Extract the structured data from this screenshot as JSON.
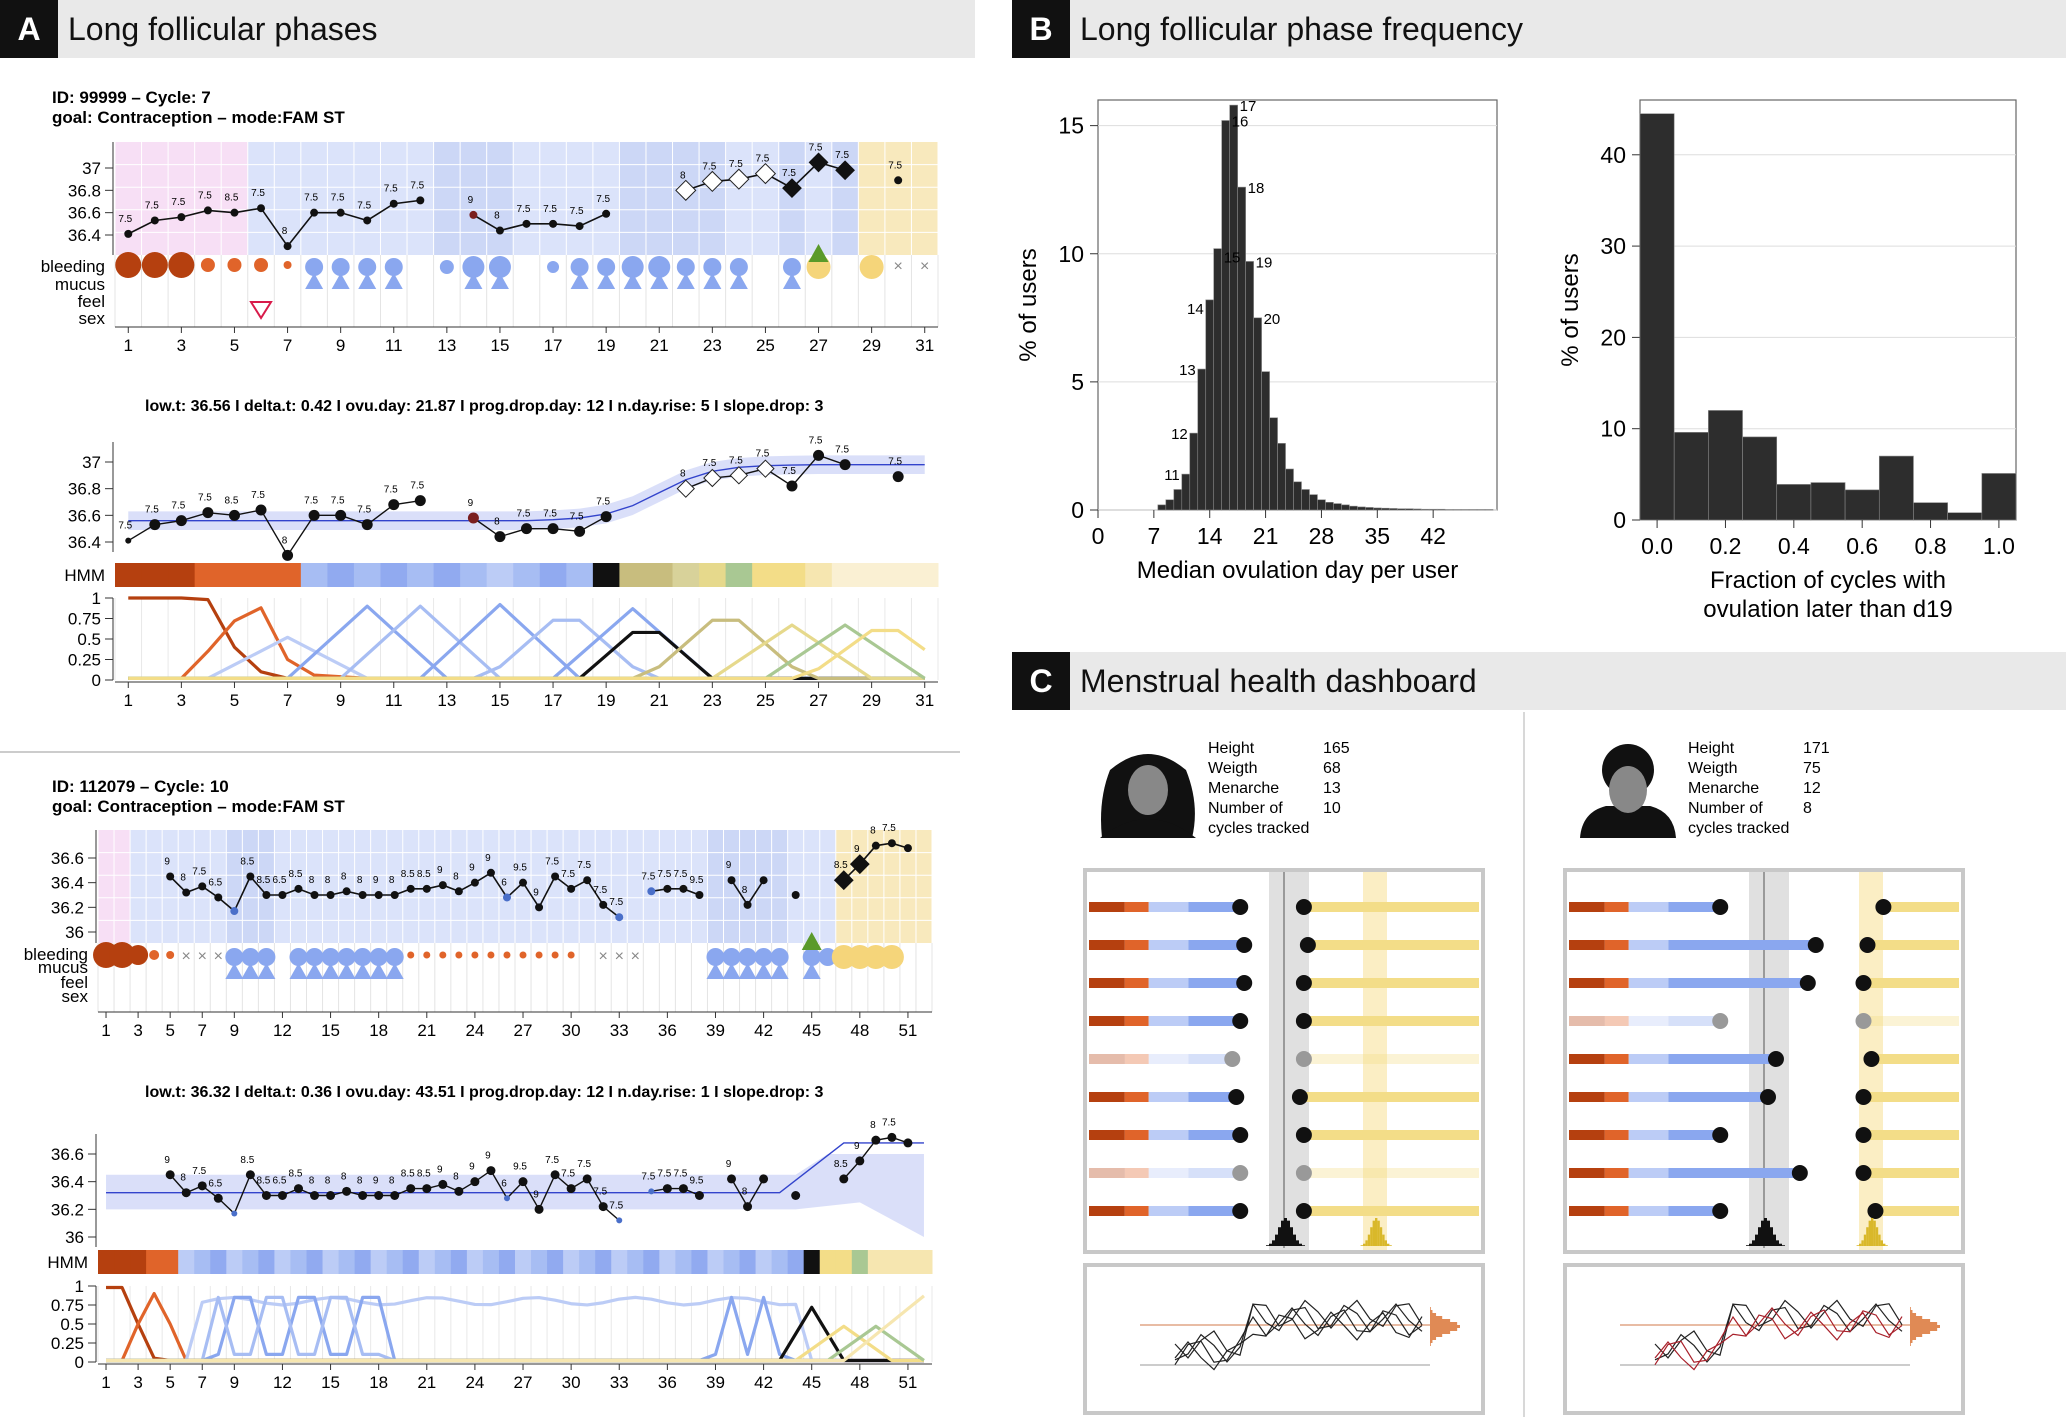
{
  "panels": {
    "a": {
      "letter": "A",
      "title": "Long follicular phases"
    },
    "b": {
      "letter": "B",
      "title": "Long follicular phase frequency"
    },
    "c": {
      "letter": "C",
      "title": "Menstrual health dashboard"
    }
  },
  "cycle1": {
    "id_line": "ID: 99999 – Cycle: 7",
    "goal_line": "goal: Contraception  –  mode:FAM ST",
    "stats": "low.t: 36.56  I  delta.t: 0.42  I  ovu.day: 21.87  I  prog.drop.day: 12  I  n.day.rise: 5  I  slope.drop: 3",
    "temp_ticks": [
      "37",
      "36.8",
      "36.6",
      "36.4"
    ],
    "days": [
      "1",
      "3",
      "5",
      "7",
      "9",
      "11",
      "13",
      "15",
      "17",
      "19",
      "21",
      "23",
      "25",
      "27",
      "29",
      "31"
    ]
  },
  "cycle2": {
    "id_line": "ID: 112079 – Cycle: 10",
    "goal_line": "goal: Contraception  –  mode:FAM ST",
    "stats": "low.t: 36.32  I  delta.t: 0.36  I  ovu.day: 43.51  I  prog.drop.day: 12  I  n.day.rise: 1  I  slope.drop: 3",
    "temp_ticks": [
      "36.6",
      "36.4",
      "36.2",
      "36"
    ],
    "days": [
      "1",
      "3",
      "5",
      "7",
      "9",
      "12",
      "15",
      "18",
      "21",
      "24",
      "27",
      "30",
      "33",
      "36",
      "39",
      "42",
      "45",
      "48",
      "51"
    ]
  },
  "row_labels": [
    "bleeding",
    "mucus",
    "feel",
    "sex"
  ],
  "hmm_label": "HMM",
  "prob_ticks": [
    "1",
    "0.75",
    "0.5",
    "0.25",
    "0"
  ],
  "chart_data": [
    {
      "type": "bar",
      "title": "Long follicular phase frequency",
      "xlabel": "Median ovulation day per user",
      "ylabel": "% of users",
      "xlim": [
        0,
        50
      ],
      "ylim": [
        0,
        16
      ],
      "xticks": [
        "0",
        "7",
        "14",
        "21",
        "28",
        "35",
        "42"
      ],
      "yticks": [
        "0",
        "5",
        "10",
        "15"
      ],
      "bin_width": 1,
      "x": [
        8,
        9,
        10,
        11,
        12,
        13,
        14,
        15,
        16,
        17,
        18,
        19,
        20,
        21,
        22,
        23,
        24,
        25,
        26,
        27,
        28,
        29,
        30,
        31,
        32,
        33,
        34,
        35,
        36,
        37,
        38,
        39,
        40,
        41,
        42,
        43,
        44,
        45,
        46,
        47,
        48,
        49
      ],
      "values": [
        0.2,
        0.4,
        0.8,
        1.4,
        3,
        5.5,
        8.2,
        10.2,
        15.2,
        15.8,
        12.6,
        9.7,
        7.5,
        5.4,
        3.6,
        2.6,
        1.6,
        1.1,
        0.8,
        0.6,
        0.4,
        0.3,
        0.25,
        0.2,
        0.15,
        0.12,
        0.1,
        0.08,
        0.07,
        0.06,
        0.05,
        0.05,
        0.04,
        0.03,
        0.03,
        0.03,
        0.02,
        0.02,
        0.02,
        0.02,
        0.02,
        0.02
      ],
      "bar_labels": [
        {
          "x": 11,
          "label": "11"
        },
        {
          "x": 12,
          "label": "12"
        },
        {
          "x": 13,
          "label": "13"
        },
        {
          "x": 14,
          "label": "14"
        },
        {
          "x": 15,
          "label": "15"
        },
        {
          "x": 16,
          "label": "16"
        },
        {
          "x": 17,
          "label": "17"
        },
        {
          "x": 18,
          "label": "18"
        },
        {
          "x": 19,
          "label": "19"
        },
        {
          "x": 20,
          "label": "20"
        }
      ]
    },
    {
      "type": "bar",
      "xlabel": "Fraction of cycles with ovulation later than d19",
      "xlabel_lines": [
        "Fraction of cycles with",
        "ovulation later than d19"
      ],
      "ylabel": "% of users",
      "xlim": [
        -0.05,
        1.05
      ],
      "ylim": [
        0,
        46
      ],
      "xticks": [
        "0.0",
        "0.2",
        "0.4",
        "0.6",
        "0.8",
        "1.0"
      ],
      "yticks": [
        "0",
        "10",
        "20",
        "30",
        "40"
      ],
      "bin_width": 0.1,
      "x": [
        0.0,
        0.1,
        0.2,
        0.3,
        0.4,
        0.5,
        0.6,
        0.7,
        0.8,
        0.9,
        1.0
      ],
      "values": [
        44.5,
        9.6,
        12.0,
        9.1,
        3.9,
        4.1,
        3.3,
        7.0,
        1.9,
        0.8,
        5.1
      ]
    }
  ],
  "dashboard": {
    "users": [
      {
        "labels": [
          "Height",
          "Weigth",
          "Menarche",
          "Number of",
          "cycles tracked"
        ],
        "values": [
          "165",
          "68",
          "13",
          "10",
          ""
        ]
      },
      {
        "labels": [
          "Height",
          "Weigth",
          "Menarche",
          "Number of",
          "cycles tracked"
        ],
        "values": [
          "171",
          "75",
          "12",
          "8",
          ""
        ]
      }
    ]
  },
  "colors": {
    "bleed_dark": "#b5400f",
    "bleed_mid": "#e0642a",
    "mucus": "#8aa7ef",
    "fertile_pink": "#f7dff5",
    "follicular_blue": "#dbe3fa",
    "luteal_yellow": "#f8e9bd",
    "bar": "#2d2d2d",
    "header_bg": "#e9e9e9"
  }
}
